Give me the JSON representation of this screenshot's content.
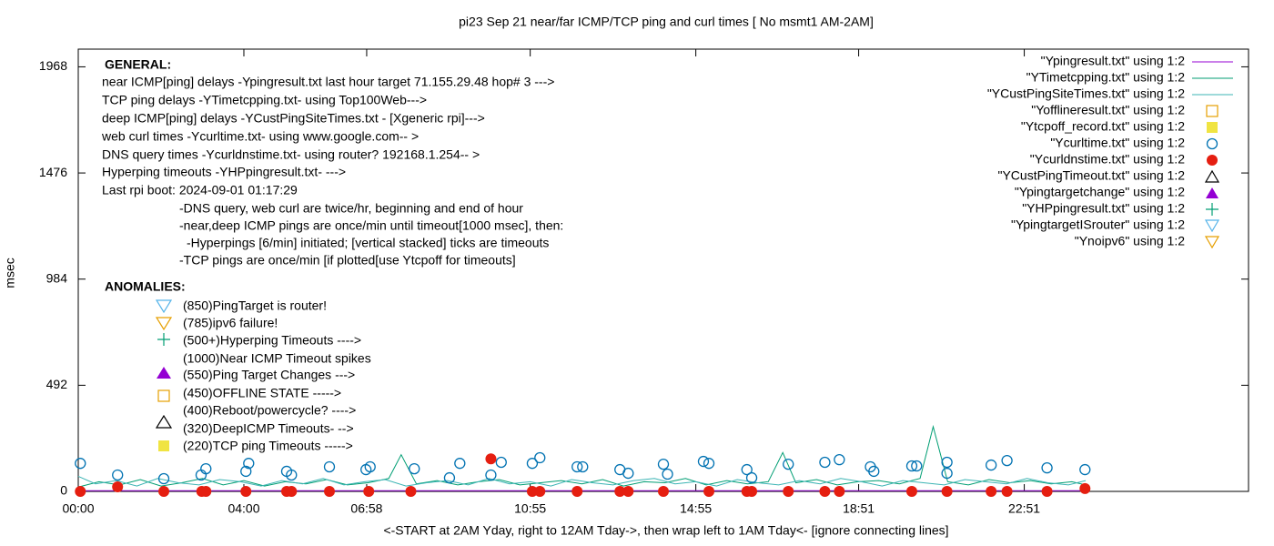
{
  "chart_data": {
    "type": "line",
    "title": "pi23 Sep 21  near/far ICMP/TCP ping and curl times [ No msmt1 AM-2AM]",
    "x_label": "<-START at 2AM Yday, right to 12AM Tday->, then wrap left to 1AM Tday<- [ignore connecting lines]",
    "y_label": "msec",
    "xlim": [
      0,
      1696
    ],
    "ylim": [
      0,
      2050
    ],
    "xticks": [
      {
        "value": 0,
        "label": "00:00"
      },
      {
        "value": 240,
        "label": "04:00"
      },
      {
        "value": 418,
        "label": "06:58"
      },
      {
        "value": 655,
        "label": "10:55"
      },
      {
        "value": 895,
        "label": "14:55"
      },
      {
        "value": 1131,
        "label": "18:51"
      },
      {
        "value": 1371,
        "label": "22:51"
      }
    ],
    "yticks": [
      0,
      492,
      984,
      1476,
      1968
    ],
    "legend": "top-right",
    "annotations": {
      "general_title": "GENERAL:",
      "general": [
        "near ICMP[ping] delays -Ypingresult.txt last hour target 71.155.29.48 hop# 3 --->",
        "TCP ping delays -YTimetcpping.txt- using Top100Web--->",
        "deep ICMP[ping] delays -YCustPingSiteTimes.txt - [Xgeneric rpi]--->",
        "web curl times -Ycurltime.txt- using www.google.com-- >",
        "DNS query times -Ycurldnstime.txt- using router? 192168.1.254-- >",
        "Hyperping timeouts -YHPpingresult.txt- --->",
        "Last rpi boot: 2024-09-01 01:17:29",
        "-DNS query, web curl are twice/hr, beginning and end of hour",
        "-near,deep ICMP pings are once/min until timeout[1000 msec], then:",
        "-Hyperpings [6/min] initiated; [vertical stacked] ticks are timeouts",
        "-TCP pings are once/min [if plotted[use Ytcpoff for timeouts]"
      ],
      "anomalies_title": "ANOMALIES:",
      "anomalies": [
        "(850)PingTarget is router!",
        "(785)ipv6 failure!",
        "(500+)Hyperping Timeouts ---->",
        "(1000)Near ICMP Timeout spikes",
        "(550)Ping Target Changes --->",
        "(450)OFFLINE STATE ----->",
        "(400)Reboot/powercycle? ---->",
        "(320)DeepICMP Timeouts- -->",
        "(220)TCP ping Timeouts ----->"
      ]
    },
    "series": [
      {
        "name": "\"Ypingresult.txt\" using 1:2",
        "color": "#9400d3",
        "marker": "line",
        "x": [
          0,
          300,
          600,
          900,
          1200,
          1460
        ],
        "values": [
          3,
          3,
          3,
          3,
          3,
          3
        ]
      },
      {
        "name": "\"YTimetcpping.txt\" using 1:2",
        "color": "#009e73",
        "marker": "line",
        "x": [
          0,
          30,
          60,
          90,
          120,
          150,
          180,
          210,
          240,
          270,
          300,
          330,
          360,
          390,
          420,
          450,
          468,
          490,
          520,
          550,
          580,
          610,
          640,
          670,
          700,
          730,
          760,
          790,
          820,
          850,
          880,
          910,
          940,
          970,
          1000,
          1021,
          1040,
          1070,
          1100,
          1130,
          1160,
          1190,
          1220,
          1239,
          1260,
          1290,
          1320,
          1350,
          1380,
          1410,
          1440,
          1460
        ],
        "values": [
          20,
          45,
          30,
          55,
          25,
          40,
          60,
          30,
          50,
          25,
          45,
          35,
          55,
          30,
          40,
          60,
          170,
          35,
          50,
          30,
          45,
          55,
          30,
          40,
          50,
          35,
          55,
          25,
          45,
          40,
          60,
          30,
          50,
          35,
          45,
          180,
          40,
          55,
          30,
          45,
          50,
          35,
          60,
          300,
          45,
          30,
          55,
          40,
          50,
          35,
          45,
          30
        ]
      },
      {
        "name": "\"YCustPingSiteTimes.txt\" using 1:2",
        "color": "#3cb4b4",
        "marker": "line",
        "x": [
          0,
          25,
          55,
          85,
          115,
          145,
          175,
          205,
          235,
          265,
          295,
          325,
          355,
          385,
          415,
          445,
          475,
          505,
          535,
          565,
          595,
          625,
          655,
          685,
          715,
          745,
          775,
          805,
          835,
          865,
          895,
          925,
          955,
          985,
          1015,
          1045,
          1075,
          1105,
          1135,
          1165,
          1195,
          1225,
          1255,
          1285,
          1315,
          1345,
          1375,
          1405,
          1435,
          1460
        ],
        "values": [
          70,
          35,
          50,
          25,
          60,
          40,
          30,
          55,
          45,
          25,
          50,
          35,
          60,
          30,
          45,
          55,
          25,
          40,
          50,
          30,
          60,
          35,
          45,
          25,
          55,
          40,
          30,
          50,
          60,
          35,
          45,
          25,
          55,
          40,
          30,
          50,
          35,
          60,
          45,
          25,
          50,
          40,
          30,
          55,
          45,
          35,
          60,
          40,
          30,
          50
        ]
      },
      {
        "name": "\"Yofflineresult.txt\" using 1:2",
        "color": "#e69f00",
        "marker": "square-open",
        "x": [],
        "values": []
      },
      {
        "name": "\"Ytcpoff_record.txt\" using 1:2",
        "color": "#f0e442",
        "marker": "square-filled",
        "x": [],
        "values": []
      },
      {
        "name": "\"Ycurltime.txt\" using 1:2",
        "color": "#0072b2",
        "marker": "circle-open",
        "x": [
          3,
          57,
          124,
          178,
          185,
          243,
          247,
          302,
          309,
          364,
          417,
          423,
          487,
          538,
          553,
          598,
          613,
          658,
          669,
          723,
          731,
          785,
          797,
          848,
          854,
          906,
          914,
          969,
          976,
          1029,
          1082,
          1103,
          1148,
          1153,
          1208,
          1215,
          1259,
          1259,
          1323,
          1346,
          1404,
          1459
        ],
        "values": [
          130,
          76,
          59,
          76,
          105,
          93,
          130,
          93,
          76,
          114,
          101,
          114,
          105,
          63,
          130,
          76,
          135,
          130,
          156,
          114,
          114,
          101,
          84,
          126,
          80,
          139,
          130,
          101,
          63,
          126,
          135,
          147,
          114,
          93,
          118,
          118,
          84,
          135,
          122,
          143,
          109,
          101
        ]
      },
      {
        "name": "\"Ycurldnstime.txt\" using 1:2",
        "color": "#e51e10",
        "marker": "circle-filled",
        "x": [
          3,
          57,
          124,
          179,
          185,
          243,
          302,
          309,
          364,
          421,
          482,
          598,
          658,
          669,
          723,
          785,
          797,
          848,
          914,
          969,
          976,
          1029,
          1082,
          1103,
          1208,
          1259,
          1323,
          1346,
          1404,
          1459
        ],
        "values": [
          0,
          21,
          0,
          0,
          0,
          0,
          0,
          0,
          0,
          0,
          0,
          151,
          0,
          0,
          0,
          0,
          0,
          0,
          0,
          0,
          0,
          0,
          0,
          0,
          0,
          0,
          0,
          0,
          0,
          13
        ]
      },
      {
        "name": "\"YCustPingTimeout.txt\" using 1:2",
        "color": "#000000",
        "marker": "triangle-open",
        "x": [],
        "values": []
      },
      {
        "name": "\"Ypingtargetchange\" using 1:2",
        "color": "#9400d3",
        "marker": "triangle-filled",
        "x": [],
        "values": []
      },
      {
        "name": "\"YHPpingresult.txt\" using 1:2",
        "color": "#009e73",
        "marker": "plus",
        "x": [],
        "values": []
      },
      {
        "name": "\"YpingtargetISrouter\" using 1:2",
        "color": "#56b4e9",
        "marker": "triangle-down-open",
        "x": [],
        "values": []
      },
      {
        "name": "\"Ynoipv6\" using 1:2",
        "color": "#e69f00",
        "marker": "triangle-down-open",
        "x": [],
        "values": []
      }
    ]
  }
}
